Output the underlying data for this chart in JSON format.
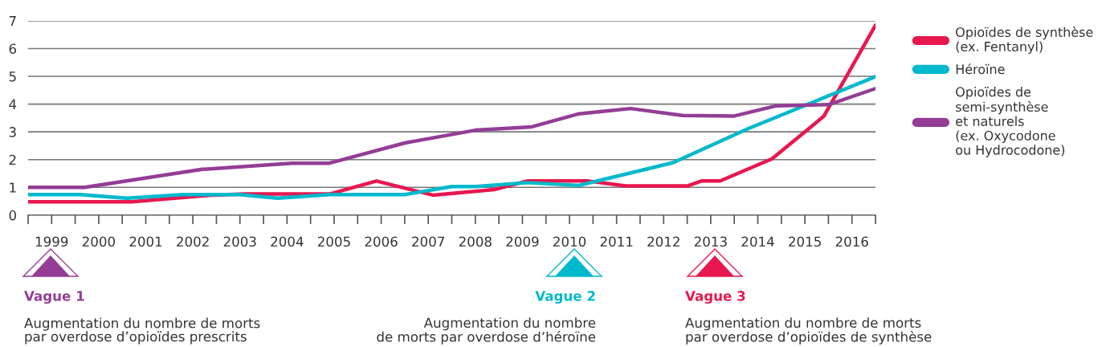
{
  "chart_data": {
    "type": "line",
    "xlim": [
      1999,
      2017
    ],
    "xticks": [
      {
        "value": 1999,
        "label": null
      },
      {
        "value": 1999.5,
        "label": "1999"
      },
      {
        "value": 2000,
        "label": null
      },
      {
        "value": 2000.5,
        "label": "2000"
      },
      {
        "value": 2001,
        "label": null
      },
      {
        "value": 2001.5,
        "label": "2001"
      },
      {
        "value": 2002,
        "label": null
      },
      {
        "value": 2002.5,
        "label": "2002"
      },
      {
        "value": 2003,
        "label": null
      },
      {
        "value": 2003.5,
        "label": "2003"
      },
      {
        "value": 2004,
        "label": null
      },
      {
        "value": 2004.5,
        "label": "2004"
      },
      {
        "value": 2005,
        "label": null
      },
      {
        "value": 2005.5,
        "label": "2005"
      },
      {
        "value": 2006,
        "label": null
      },
      {
        "value": 2006.5,
        "label": "2006"
      },
      {
        "value": 2007,
        "label": null
      },
      {
        "value": 2007.5,
        "label": "2007"
      },
      {
        "value": 2008,
        "label": null
      },
      {
        "value": 2008.5,
        "label": "2008"
      },
      {
        "value": 2009,
        "label": null
      },
      {
        "value": 2009.5,
        "label": "2009"
      },
      {
        "value": 2010,
        "label": null
      },
      {
        "value": 2010.5,
        "label": "2010"
      },
      {
        "value": 2011,
        "label": null
      },
      {
        "value": 2011.5,
        "label": "2011"
      },
      {
        "value": 2012,
        "label": null
      },
      {
        "value": 2012.5,
        "label": "2012"
      },
      {
        "value": 2013,
        "label": null
      },
      {
        "value": 2013.5,
        "label": "2013"
      },
      {
        "value": 2014,
        "label": null
      },
      {
        "value": 2014.5,
        "label": "2014"
      },
      {
        "value": 2015,
        "label": null
      },
      {
        "value": 2015.5,
        "label": "2015"
      },
      {
        "value": 2016,
        "label": null
      },
      {
        "value": 2016.5,
        "label": "2016"
      },
      {
        "value": 2017,
        "label": null
      }
    ],
    "ylim": [
      0,
      7
    ],
    "yticks": [
      0,
      1,
      2,
      3,
      4,
      5,
      6,
      7
    ],
    "grid": "y",
    "legend": "right",
    "series": [
      {
        "name": "Opioïdes de synthèse\n(ex. Fentanyl)",
        "color": "#e8174f",
        "x": [
          1999.0,
          2001.2,
          2002.9,
          2003.6,
          2005.4,
          2006.4,
          2007.6,
          2008.9,
          2009.6,
          2010.9,
          2011.7,
          2013.0,
          2013.3,
          2013.7,
          2014.8,
          2015.9,
          2017.0
        ],
        "values": [
          0.48,
          0.48,
          0.72,
          0.76,
          0.76,
          1.23,
          0.72,
          0.92,
          1.23,
          1.23,
          1.05,
          1.05,
          1.23,
          1.23,
          2.03,
          3.56,
          6.84
        ]
      },
      {
        "name": "Héroïne",
        "color": "#00b9cc",
        "x": [
          1999.0,
          2000.1,
          2001.1,
          2002.3,
          2003.5,
          2004.3,
          2005.4,
          2007.0,
          2008.0,
          2008.5,
          2009.6,
          2010.7,
          2012.7,
          2014.3,
          2017.0
        ],
        "values": [
          0.74,
          0.74,
          0.61,
          0.74,
          0.74,
          0.61,
          0.74,
          0.74,
          1.03,
          1.03,
          1.17,
          1.07,
          1.89,
          3.12,
          4.99
        ]
      },
      {
        "name": "Opioïdes de\nsemi-synthèse\net naturels\n(ex. Oxycodone\nou Hydrocodone)",
        "color": "#933d96",
        "x": [
          1999.0,
          2000.2,
          2002.7,
          2004.6,
          2005.4,
          2007.0,
          2008.5,
          2009.7,
          2010.7,
          2011.8,
          2012.9,
          2014.0,
          2014.9,
          2016.0,
          2017.0
        ],
        "values": [
          1.0,
          1.0,
          1.65,
          1.87,
          1.87,
          2.6,
          3.06,
          3.18,
          3.65,
          3.84,
          3.59,
          3.57,
          3.94,
          3.98,
          4.56
        ]
      }
    ],
    "annotations": [
      "Vague 1",
      "Augmentation du nombre de morts\npar overdose d’opioïdes prescrits",
      "Vague 2",
      "Augmentation du nombre\nde morts par overdose d’héroïne",
      "Vague 3",
      "Augmentation du nombre de morts\npar overdose d’opioïdes de synthèse"
    ]
  }
}
